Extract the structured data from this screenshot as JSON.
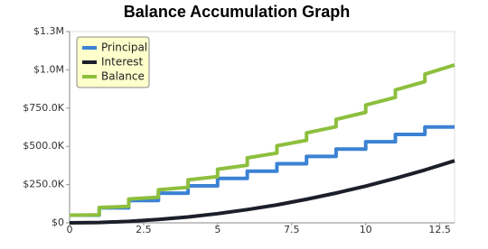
{
  "chart_data": {
    "type": "line",
    "title": "Balance Accumulation Graph",
    "x": [
      0,
      1,
      1,
      2,
      2,
      3,
      3,
      4,
      4,
      5,
      5,
      6,
      6,
      7,
      7,
      8,
      8,
      9,
      9,
      10,
      10,
      11,
      11,
      12,
      12,
      13
    ],
    "series": [
      {
        "name": "Principal",
        "color": "#3b82d4",
        "values": [
          50000,
          50000,
          98000,
          98000,
          146000,
          146000,
          194000,
          194000,
          242000,
          242000,
          290000,
          290000,
          338000,
          338000,
          386000,
          386000,
          434000,
          434000,
          482000,
          482000,
          530000,
          530000,
          578000,
          578000,
          626000,
          626000
        ]
      },
      {
        "name": "Interest",
        "color": "#1c1f2a",
        "values": [
          0,
          2400,
          2400,
          9600,
          9600,
          21600,
          21600,
          38400,
          38400,
          60000,
          60000,
          86400,
          86400,
          117600,
          117600,
          153600,
          153600,
          194400,
          194400,
          240000,
          240000,
          290400,
          290400,
          345600,
          345600,
          405600
        ]
      },
      {
        "name": "Balance",
        "color": "#8dbf3d",
        "values": [
          50000,
          52400,
          100400,
          107600,
          155600,
          167600,
          215600,
          232400,
          280400,
          302000,
          350000,
          376400,
          424400,
          455600,
          503600,
          539600,
          587600,
          628400,
          676400,
          722000,
          770000,
          820400,
          868400,
          923600,
          971600,
          1031600
        ]
      }
    ],
    "xlim": [
      0,
      13
    ],
    "xticks": [
      0,
      2.5,
      5,
      7.5,
      10,
      12.5
    ],
    "ylim": [
      0,
      1250000
    ],
    "yticks": [
      {
        "value": 0,
        "label": "$0"
      },
      {
        "value": 250000,
        "label": "$250.0K"
      },
      {
        "value": 500000,
        "label": "$500.0K"
      },
      {
        "value": 750000,
        "label": "$750.0K"
      },
      {
        "value": 1000000,
        "label": "$1.0M"
      },
      {
        "value": 1250000,
        "label": "$1.3M"
      }
    ],
    "legend": "top-left"
  }
}
